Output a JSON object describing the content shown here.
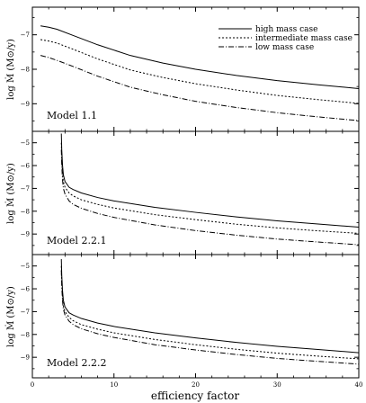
{
  "figure": {
    "xlabel": "efficiency factor",
    "legend": {
      "placement": "top-right",
      "entries": [
        {
          "label": "high mass case",
          "dash": "solid"
        },
        {
          "label": "intermediate mass case",
          "dash": "dotted"
        },
        {
          "label": "low mass case",
          "dash": "dash-dot"
        }
      ]
    }
  },
  "chart_data": [
    {
      "type": "line",
      "title": "Model 1.1",
      "xlabel": "",
      "ylabel": "log Ṁ  (M⊙/y)",
      "xlim": [
        0,
        40
      ],
      "ylim": [
        -9.8,
        -6.2
      ],
      "x_ticks": [
        0,
        10,
        20,
        30,
        40
      ],
      "y_ticks": [
        -7,
        -8,
        -9
      ],
      "grid": false,
      "legend": true,
      "series": [
        {
          "name": "high mass case",
          "dash": "solid",
          "x": [
            1,
            2,
            3,
            5,
            8,
            12,
            16,
            20,
            25,
            30,
            35,
            40
          ],
          "y": [
            -6.74,
            -6.78,
            -6.84,
            -7.02,
            -7.29,
            -7.6,
            -7.82,
            -8.0,
            -8.18,
            -8.33,
            -8.45,
            -8.56
          ]
        },
        {
          "name": "intermediate mass case",
          "dash": "dotted",
          "x": [
            1,
            2,
            3,
            5,
            8,
            12,
            16,
            20,
            25,
            30,
            35,
            40
          ],
          "y": [
            -7.14,
            -7.18,
            -7.24,
            -7.42,
            -7.7,
            -8.02,
            -8.24,
            -8.42,
            -8.6,
            -8.76,
            -8.88,
            -8.99
          ]
        },
        {
          "name": "low mass case",
          "dash": "dash-dot",
          "x": [
            1,
            2,
            3,
            5,
            8,
            12,
            16,
            20,
            25,
            30,
            35,
            40
          ],
          "y": [
            -7.6,
            -7.66,
            -7.74,
            -7.92,
            -8.2,
            -8.52,
            -8.74,
            -8.93,
            -9.11,
            -9.26,
            -9.38,
            -9.49
          ]
        }
      ]
    },
    {
      "type": "line",
      "title": "Model 2.2.1",
      "xlabel": "",
      "ylabel": "log Ṁ  (M⊙/y)",
      "xlim": [
        0,
        40
      ],
      "ylim": [
        -9.9,
        -4.5
      ],
      "x_ticks": [
        0,
        10,
        20,
        30,
        40
      ],
      "y_ticks": [
        -5,
        -6,
        -7,
        -8,
        -9
      ],
      "grid": false,
      "legend": false,
      "series": [
        {
          "name": "high mass case",
          "dash": "solid",
          "x": [
            3.55,
            3.6,
            3.7,
            3.8,
            4.0,
            4.5,
            5,
            6,
            8,
            10,
            15,
            20,
            25,
            30,
            35,
            40
          ],
          "y": [
            -4.6,
            -5.3,
            -6.0,
            -6.4,
            -6.7,
            -6.95,
            -7.05,
            -7.2,
            -7.4,
            -7.55,
            -7.83,
            -8.05,
            -8.25,
            -8.42,
            -8.56,
            -8.7
          ]
        },
        {
          "name": "intermediate mass case",
          "dash": "dotted",
          "x": [
            3.55,
            3.6,
            3.7,
            3.8,
            4.0,
            4.5,
            5,
            6,
            8,
            10,
            15,
            20,
            25,
            30,
            35,
            40
          ],
          "y": [
            -5.0,
            -5.7,
            -6.35,
            -6.7,
            -6.95,
            -7.2,
            -7.33,
            -7.5,
            -7.7,
            -7.86,
            -8.15,
            -8.37,
            -8.57,
            -8.73,
            -8.86,
            -8.97
          ]
        },
        {
          "name": "low mass case",
          "dash": "dash-dot",
          "x": [
            3.55,
            3.6,
            3.7,
            3.8,
            4.0,
            4.5,
            5,
            6,
            8,
            10,
            15,
            20,
            25,
            30,
            35,
            40
          ],
          "y": [
            -5.3,
            -6.0,
            -6.65,
            -7.0,
            -7.25,
            -7.55,
            -7.7,
            -7.87,
            -8.1,
            -8.27,
            -8.6,
            -8.85,
            -9.05,
            -9.22,
            -9.35,
            -9.47
          ]
        }
      ]
    },
    {
      "type": "line",
      "title": "Model 2.2.2",
      "xlabel": "efficiency factor",
      "ylabel": "log Ṁ  (M⊙/y)",
      "xlim": [
        0,
        40
      ],
      "ylim": [
        -9.9,
        -4.5
      ],
      "x_ticks": [
        0,
        10,
        20,
        30,
        40
      ],
      "x_tick_labels_shown": true,
      "y_ticks": [
        -5,
        -6,
        -7,
        -8,
        -9
      ],
      "grid": false,
      "legend": false,
      "series": [
        {
          "name": "high mass case",
          "dash": "solid",
          "x": [
            3.55,
            3.6,
            3.7,
            3.8,
            4.0,
            4.5,
            5,
            6,
            8,
            10,
            15,
            20,
            25,
            30,
            35,
            40
          ],
          "y": [
            -4.7,
            -5.4,
            -6.1,
            -6.5,
            -6.8,
            -7.05,
            -7.15,
            -7.3,
            -7.5,
            -7.65,
            -7.93,
            -8.15,
            -8.35,
            -8.52,
            -8.66,
            -8.8
          ]
        },
        {
          "name": "intermediate mass case",
          "dash": "dotted",
          "x": [
            3.55,
            3.6,
            3.7,
            3.8,
            4.0,
            4.5,
            5,
            6,
            8,
            10,
            15,
            20,
            25,
            30,
            35,
            40
          ],
          "y": [
            -5.0,
            -5.7,
            -6.4,
            -6.75,
            -7.0,
            -7.25,
            -7.4,
            -7.57,
            -7.77,
            -7.93,
            -8.22,
            -8.45,
            -8.65,
            -8.82,
            -8.95,
            -9.07
          ]
        },
        {
          "name": "low mass case",
          "dash": "dash-dot",
          "x": [
            3.55,
            3.6,
            3.7,
            3.8,
            4.0,
            4.5,
            5,
            6,
            8,
            10,
            15,
            20,
            25,
            30,
            35,
            40
          ],
          "y": [
            -5.2,
            -5.9,
            -6.55,
            -6.9,
            -7.15,
            -7.42,
            -7.57,
            -7.75,
            -7.97,
            -8.13,
            -8.45,
            -8.68,
            -8.88,
            -9.05,
            -9.18,
            -9.3
          ]
        }
      ]
    }
  ]
}
